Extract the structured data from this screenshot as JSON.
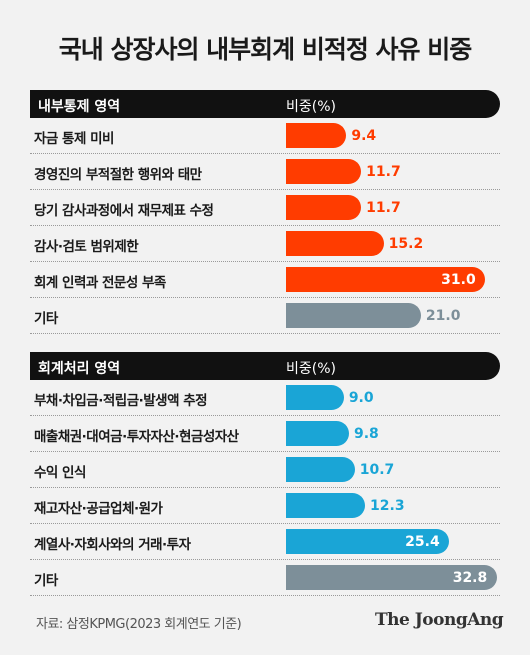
{
  "title": "국내 상장사의 내부회계 비적정 사유 비중",
  "source": "자료: 삼정KPMG(2023 회계연도 기준)",
  "logo": "The JoongAng",
  "colors": {
    "red": "#ff3c00",
    "blue": "#1aa5d6",
    "gray": "#7d8f99"
  },
  "chart_data": [
    {
      "type": "bar",
      "header": "내부통제 영역",
      "value_header": "비중(%)",
      "categories": [
        "자금 통제 미비",
        "경영진의 부적절한 행위와 태만",
        "당기 감사과정에서 재무제표 수정",
        "감사·검토 범위제한",
        "회계 인력과 전문성 부족",
        "기타"
      ],
      "values": [
        9.4,
        11.7,
        11.7,
        15.2,
        31.0,
        21.0
      ],
      "value_labels": [
        "9.4",
        "11.7",
        "11.7",
        "15.2",
        "31.0",
        "21.0"
      ],
      "bar_colors": [
        "red",
        "red",
        "red",
        "red",
        "red",
        "gray"
      ],
      "xlim": [
        0,
        33
      ]
    },
    {
      "type": "bar",
      "header": "회계처리 영역",
      "value_header": "비중(%)",
      "categories": [
        "부채·차입금·적립금·발생액 추정",
        "매출채권·대여금·투자자산·현금성자산",
        "수익 인식",
        "재고자산·공급업체·원가",
        "계열사·자회사와의 거래·투자",
        "기타"
      ],
      "values": [
        9.0,
        9.8,
        10.7,
        12.3,
        25.4,
        32.8
      ],
      "value_labels": [
        "9.0",
        "9.8",
        "10.7",
        "12.3",
        "25.4",
        "32.8"
      ],
      "bar_colors": [
        "blue",
        "blue",
        "blue",
        "blue",
        "blue",
        "gray"
      ],
      "xlim": [
        0,
        33
      ]
    }
  ]
}
